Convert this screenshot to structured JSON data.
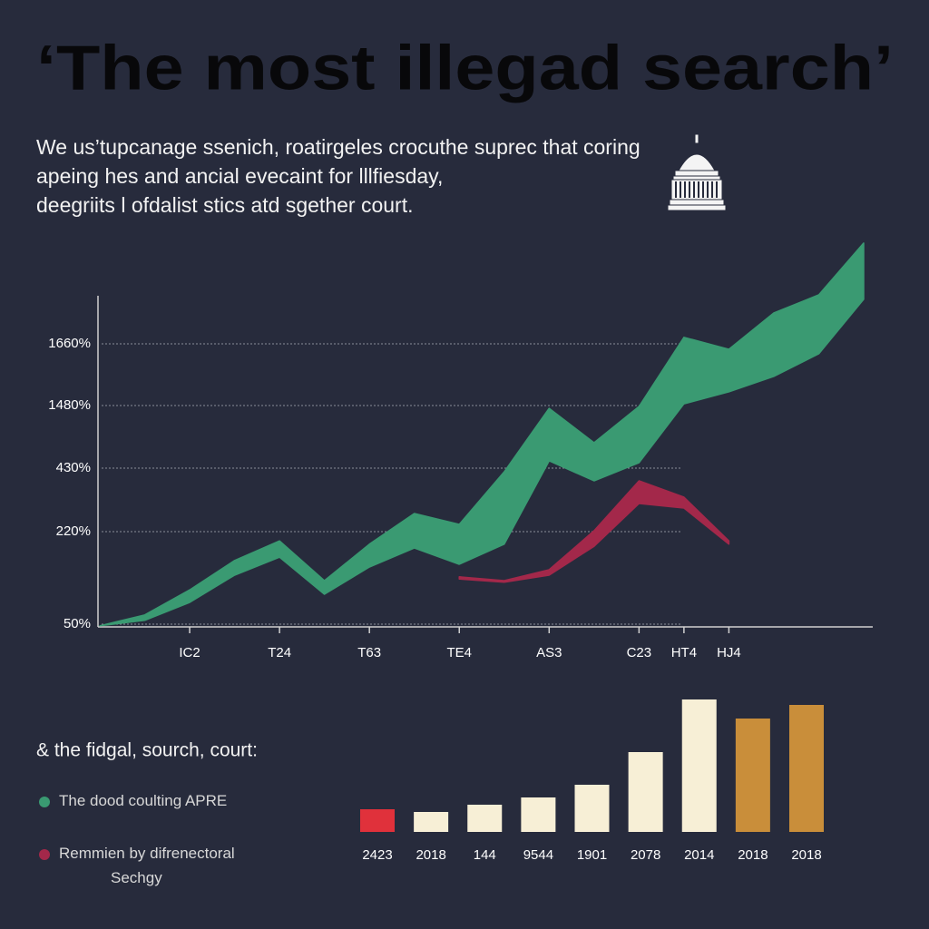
{
  "title": "‘The most illegad search’",
  "subtitle": [
    "We us’tupcanage ssenich, roatirgeles crocuthe suprec that coring",
    "apeing hes and ancial evecaint for lllfiesday,",
    "deegriits l ofdalist stics atd sgether court."
  ],
  "chart_data": [
    {
      "type": "band",
      "legend_title": "& the fidgal, sourch, court:",
      "categories": [
        null,
        null,
        "IC2",
        null,
        "T24",
        null,
        "T63",
        null,
        "TE4",
        null,
        "AS3",
        null,
        "C23",
        "HT4",
        "HJ4",
        null,
        null,
        null
      ],
      "ylim": [
        47,
        1800
      ],
      "yticks": [
        {
          "value": 50,
          "label": "50%"
        },
        {
          "value": 220,
          "label": "220%"
        },
        {
          "value": 430,
          "label": "430%"
        },
        {
          "value": 1480,
          "label": "1480%"
        },
        {
          "value": 1660,
          "label": "1660%"
        }
      ],
      "grid": true,
      "series": [
        {
          "name": "The dood coulting APRE",
          "color": "#3a9a72",
          "values": [
            47,
            67,
            113,
            167,
            203,
            130,
            197,
            280,
            244,
            418,
            1433,
            856,
            1465,
            1679,
            1644,
            1750,
            1803,
            1954
          ],
          "lower": [
            47,
            57,
            90,
            140,
            173,
            105,
            155,
            190,
            160,
            197,
            552,
            388,
            521,
            1485,
            1520,
            1565,
            1631,
            1790
          ]
        },
        {
          "name": "Remmien by difrenectoral Sechgy",
          "color": "#a3284a",
          "values": [
            null,
            null,
            null,
            null,
            null,
            null,
            null,
            null,
            137,
            130,
            150,
            223,
            388,
            334,
            203,
            null,
            null,
            null
          ],
          "lower": [
            null,
            null,
            null,
            null,
            null,
            null,
            null,
            null,
            133,
            127,
            140,
            193,
            313,
            298,
            197,
            null,
            null,
            null
          ]
        }
      ]
    },
    {
      "type": "bar",
      "categories": [
        "2423",
        "2018",
        "144",
        "9544",
        "1901",
        "2078",
        "2014",
        "2018",
        "2018"
      ],
      "values": [
        25,
        22,
        30,
        38,
        52,
        88,
        146,
        125,
        140
      ],
      "colors": [
        "#e0313b",
        "#f7efd6",
        "#f7efd6",
        "#f7efd6",
        "#f7efd6",
        "#f7efd6",
        "#f7efd6",
        "#c98e3a",
        "#c98e3a"
      ]
    }
  ]
}
